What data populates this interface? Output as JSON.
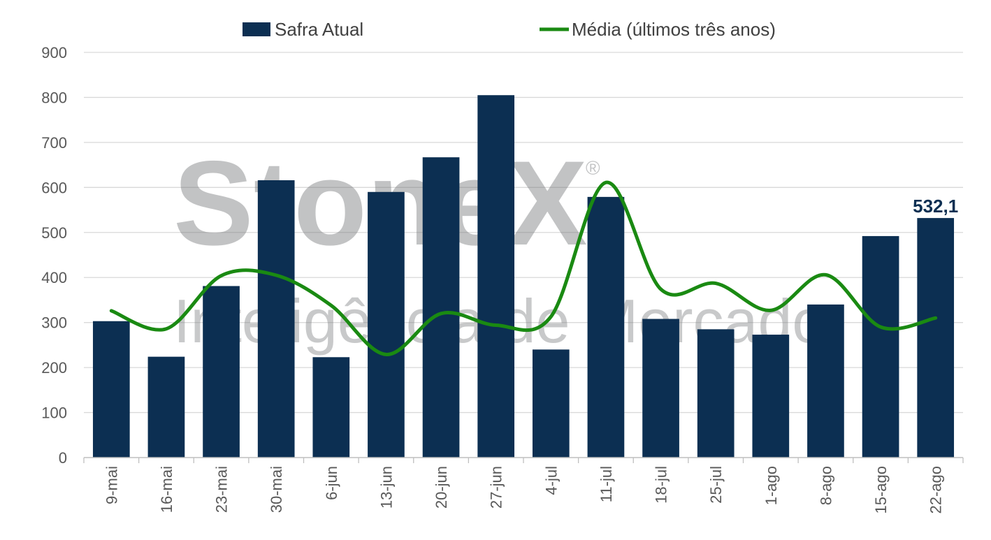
{
  "chart_data": {
    "type": "bar",
    "categories": [
      "9-mai",
      "16-mai",
      "23-mai",
      "30-mai",
      "6-jun",
      "13-jun",
      "20-jun",
      "27-jun",
      "4-jul",
      "11-jul",
      "18-jul",
      "25-jul",
      "1-ago",
      "8-ago",
      "15-ago",
      "22-ago"
    ],
    "series": [
      {
        "name": "Safra Atual",
        "kind": "bar",
        "color": "#0c2f52",
        "values": [
          303,
          224,
          381,
          616,
          223,
          590,
          667,
          805,
          240,
          579,
          308,
          285,
          273,
          340,
          492,
          532.1
        ]
      },
      {
        "name": "Média (últimos três anos)",
        "kind": "line",
        "color": "#1a8a12",
        "values": [
          326,
          286,
          404,
          405,
          338,
          229,
          320,
          294,
          313,
          611,
          374,
          387,
          327,
          406,
          290,
          310
        ]
      }
    ],
    "ylim": [
      0,
      900
    ],
    "yticks": [
      0,
      100,
      200,
      300,
      400,
      500,
      600,
      700,
      800,
      900
    ],
    "grid": true,
    "legend_position": "top-center",
    "annotations": [
      {
        "category": "22-ago",
        "series": "Safra Atual",
        "text": "532,1"
      }
    ],
    "watermark": {
      "brand": "StoneX",
      "registered": "®",
      "subtitle": "Inteligência de Mercado"
    }
  }
}
